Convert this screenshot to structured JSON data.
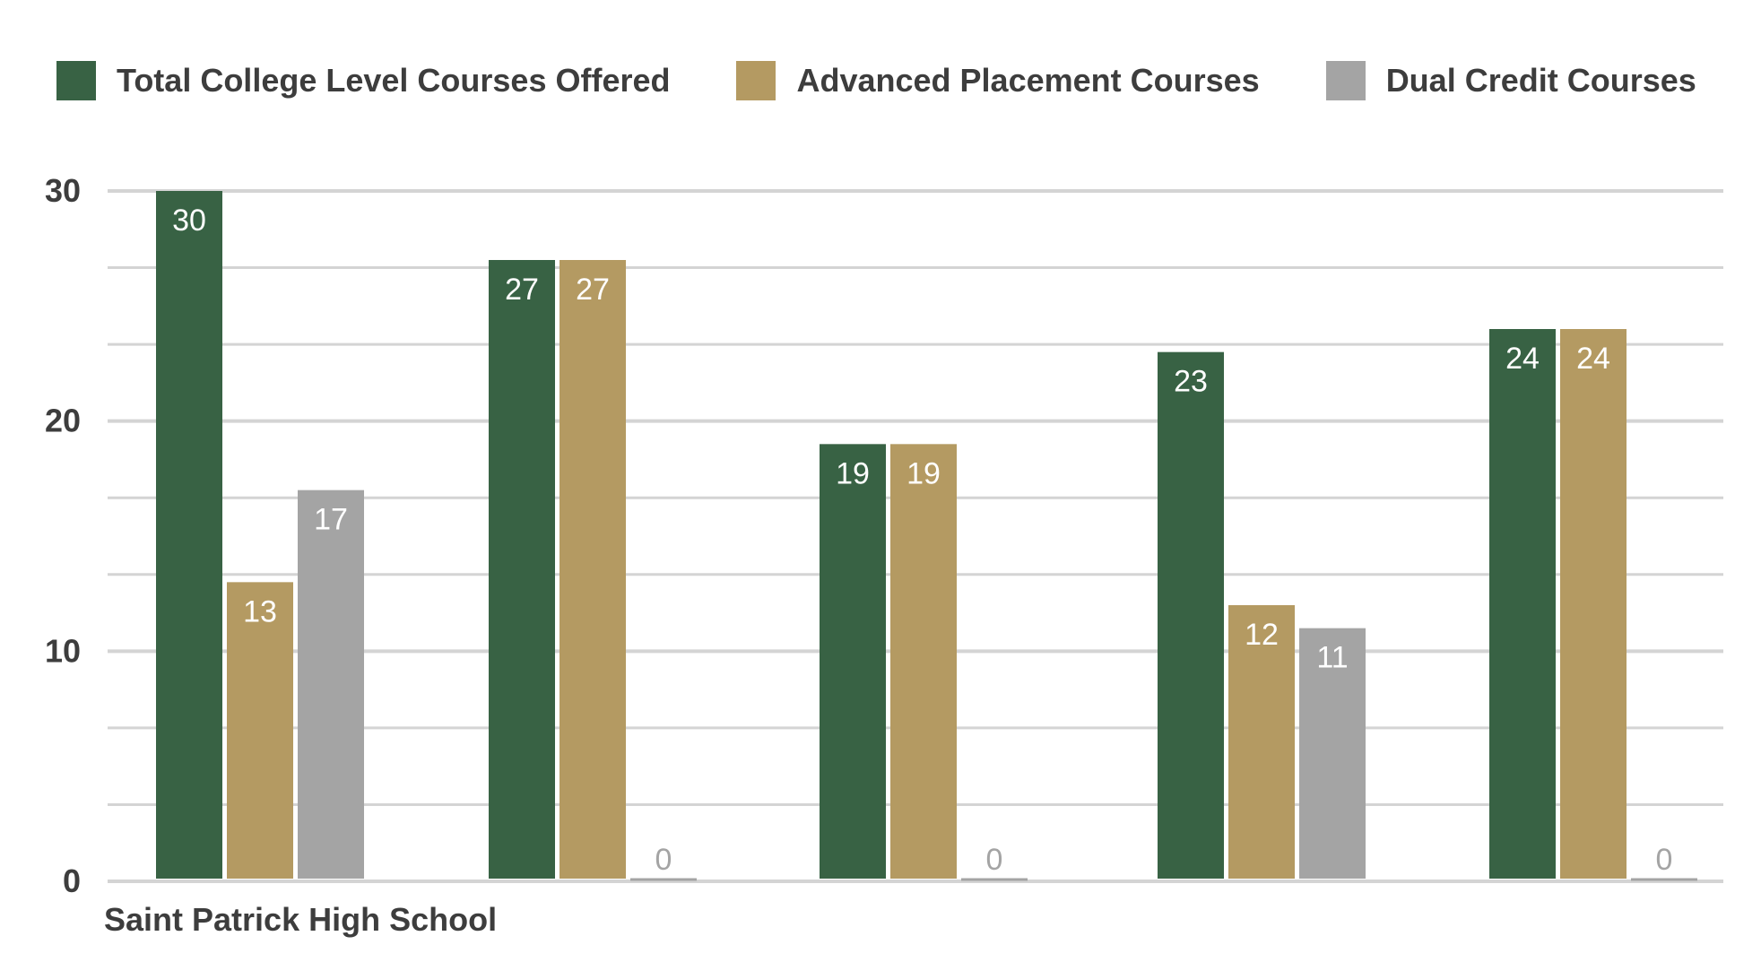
{
  "chart_data": {
    "type": "bar",
    "title": "",
    "xlabel": "",
    "ylabel": "",
    "ylim": [
      0,
      30
    ],
    "yticks": [
      0,
      10,
      20,
      30
    ],
    "grid": true,
    "legend_position": "top",
    "categories": [
      "Saint Patrick High School",
      "",
      "",
      "",
      ""
    ],
    "series": [
      {
        "name": "Total College Level Courses Offered",
        "color": "#386244",
        "values": [
          30,
          27,
          19,
          23,
          24
        ]
      },
      {
        "name": "Advanced Placement Courses",
        "color": "#b49a62",
        "values": [
          13,
          27,
          19,
          12,
          24
        ]
      },
      {
        "name": "Dual Credit Courses",
        "color": "#a4a4a4",
        "values": [
          17,
          0,
          0,
          11,
          0
        ]
      }
    ],
    "data_labels": true
  }
}
